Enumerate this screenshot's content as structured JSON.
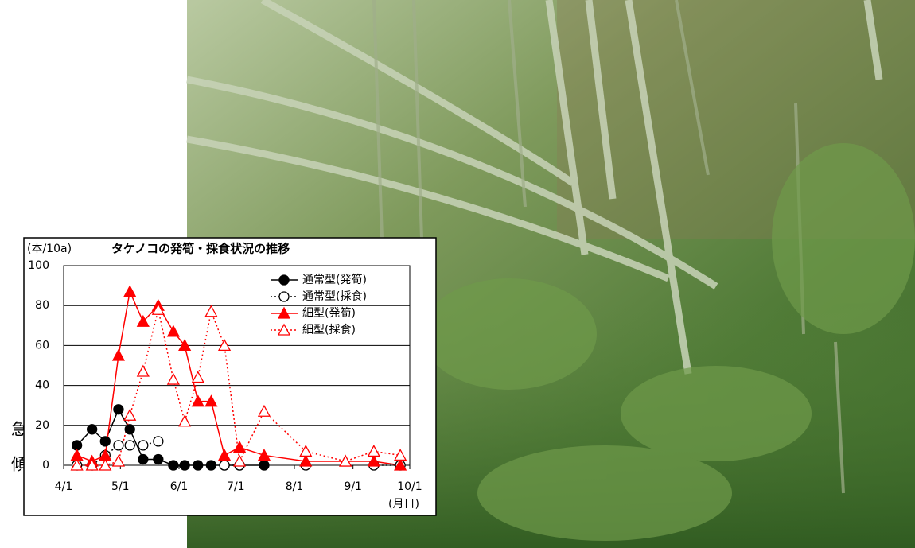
{
  "side_labels": [
    "急",
    "傾"
  ],
  "chart_data": {
    "type": "line",
    "title": "タケノコの発筍・採食状況の推移",
    "y_label": "(本/10a)",
    "x_label": "(月日)",
    "x": [
      "4/8",
      "4/16",
      "4/23",
      "4/30",
      "5/6",
      "5/13",
      "5/21",
      "5/29",
      "6/4",
      "6/11",
      "6/18",
      "6/25",
      "7/3",
      "7/16",
      "8/7",
      "8/28",
      "9/12",
      "9/26"
    ],
    "xlim": [
      "4/1",
      "10/1"
    ],
    "xticks": [
      "4/1",
      "5/1",
      "6/1",
      "7/1",
      "8/1",
      "9/1",
      "10/1"
    ],
    "ylim": [
      0,
      100
    ],
    "yticks": [
      0,
      20,
      40,
      60,
      80,
      100
    ],
    "grid": true,
    "legend": "upper right",
    "series": [
      {
        "name": "通常型(発筍)",
        "color": "#000000",
        "style": "solid",
        "marker": "circle",
        "filled": true,
        "values": [
          10,
          18,
          12,
          28,
          18,
          3,
          3,
          0,
          0,
          0,
          0,
          0,
          0,
          0,
          null,
          null,
          null,
          null
        ]
      },
      {
        "name": "通常型(採食)",
        "color": "#000000",
        "style": "dotted",
        "marker": "circle",
        "filled": false,
        "values": [
          0,
          0,
          5,
          10,
          10,
          10,
          12,
          null,
          null,
          null,
          null,
          0,
          0,
          null,
          0,
          null,
          0,
          0
        ]
      },
      {
        "name": "細型(発筍)",
        "color": "#ff0000",
        "style": "solid",
        "marker": "triangle",
        "filled": true,
        "values": [
          5,
          2,
          5,
          55,
          87,
          72,
          80,
          67,
          60,
          32,
          32,
          5,
          9,
          5,
          2,
          2,
          2,
          0
        ]
      },
      {
        "name": "細型(採食)",
        "color": "#ff0000",
        "style": "dotted",
        "marker": "triangle",
        "filled": false,
        "values": [
          0,
          0,
          0,
          2,
          25,
          47,
          78,
          43,
          22,
          44,
          77,
          60,
          2,
          27,
          7,
          2,
          7,
          5
        ]
      }
    ]
  }
}
